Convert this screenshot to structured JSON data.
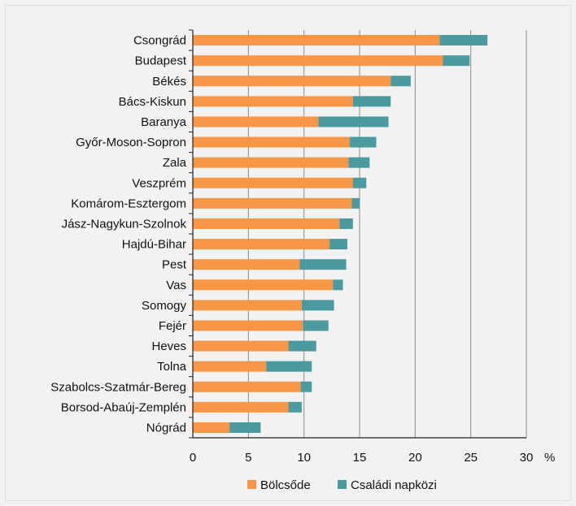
{
  "chart_data": {
    "type": "bar",
    "orientation": "horizontal",
    "stacked": true,
    "categories": [
      "Csongrád",
      "Budapest",
      "Békés",
      "Bács-Kiskun",
      "Baranya",
      "Győr-Moson-Sopron",
      "Zala",
      "Veszprém",
      "Komárom-Esztergom",
      "Jász-Nagykun-Szolnok",
      "Hajdú-Bihar",
      "Pest",
      "Vas",
      "Somogy",
      "Fejér",
      "Heves",
      "Tolna",
      "Szabolcs-Szatmár-Bereg",
      "Borsod-Abaúj-Zemplén",
      "Nógrád"
    ],
    "series": [
      {
        "name": "Bölcsőde",
        "color": "#f79646",
        "values": [
          22.2,
          22.5,
          17.8,
          14.4,
          11.3,
          14.1,
          14.0,
          14.4,
          14.3,
          13.2,
          12.3,
          9.6,
          12.6,
          9.8,
          9.9,
          8.6,
          6.6,
          9.7,
          8.6,
          3.3
        ]
      },
      {
        "name": "Családi napközi",
        "color": "#4b9aa0",
        "values": [
          4.3,
          2.4,
          1.8,
          3.4,
          6.3,
          2.4,
          1.9,
          1.2,
          0.7,
          1.2,
          1.6,
          4.2,
          0.9,
          2.9,
          2.3,
          2.5,
          4.1,
          1.0,
          1.2,
          2.8
        ]
      }
    ],
    "xlim": [
      0,
      30
    ],
    "xticks": [
      "0",
      "5",
      "10",
      "15",
      "20",
      "25",
      "30"
    ],
    "x_unit": "%",
    "grid": "vertical",
    "legend_position": "bottom"
  }
}
